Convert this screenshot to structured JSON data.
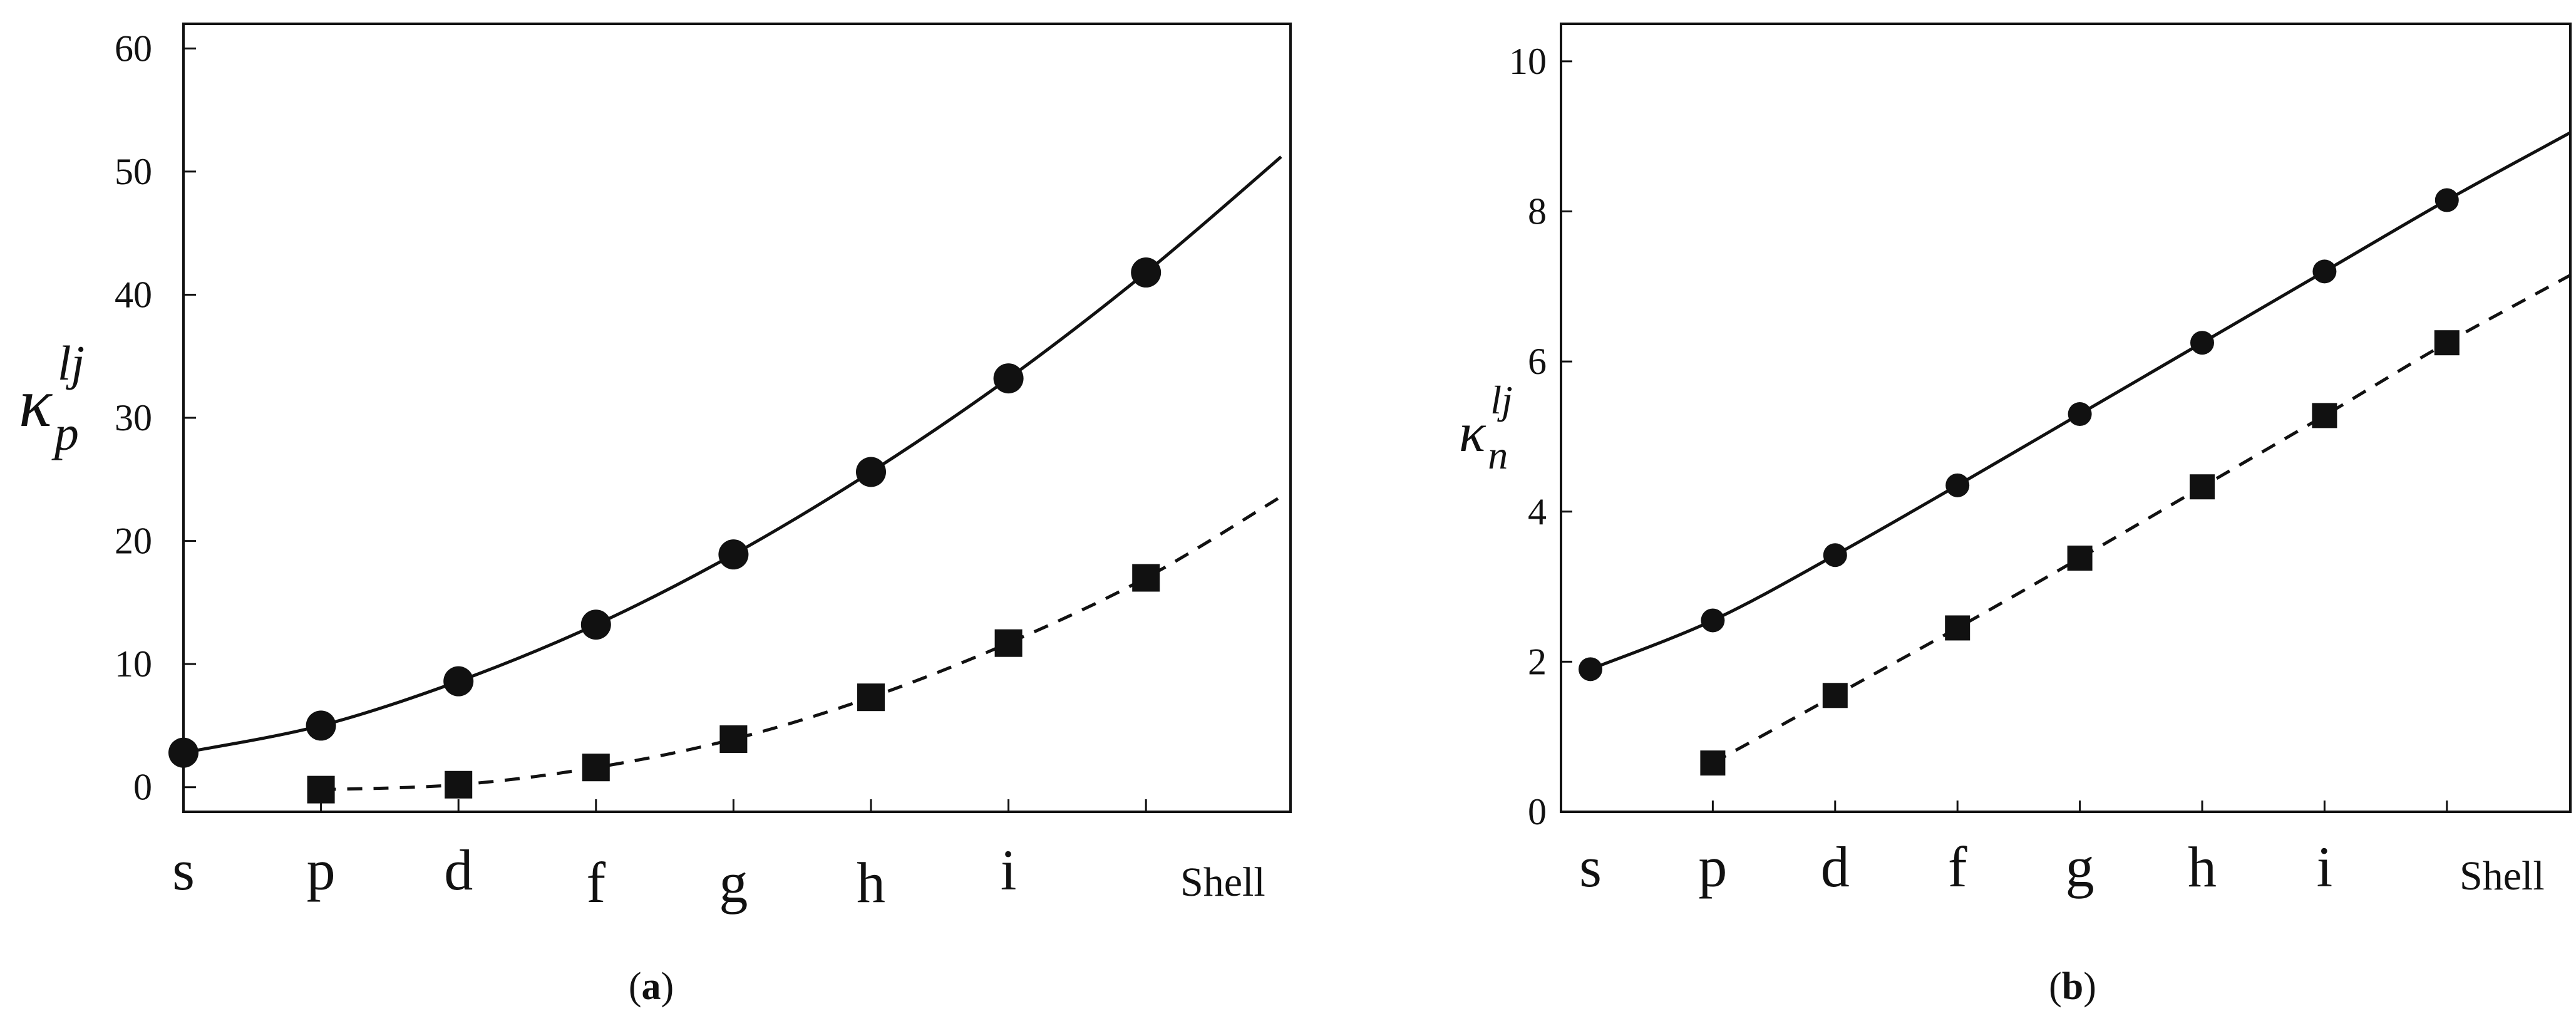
{
  "chart_data": [
    {
      "type": "line",
      "panel": "a",
      "caption_letter": "a",
      "ylabel": "κ",
      "ylabel_sub": "p",
      "ylabel_sup": "lj",
      "xlabel": "Shell",
      "categories": [
        "s",
        "p",
        "d",
        "f",
        "g",
        "h",
        "i",
        ""
      ],
      "y_ticks": [
        0,
        10,
        20,
        30,
        40,
        50,
        60
      ],
      "ylim": [
        -2,
        62
      ],
      "xlim": [
        0,
        8
      ],
      "grid": false,
      "series": [
        {
          "name": "circles",
          "marker": "circle",
          "line": "solid",
          "values": [
            2.8,
            5.0,
            8.6,
            13.2,
            18.9,
            25.6,
            33.2,
            41.8
          ],
          "line_end": 51.2
        },
        {
          "name": "squares",
          "marker": "square",
          "line": "dashed",
          "values": [
            null,
            -0.2,
            0.2,
            1.6,
            3.9,
            7.3,
            11.7,
            17.0
          ],
          "line_end": 23.6
        }
      ]
    },
    {
      "type": "line",
      "panel": "b",
      "caption_letter": "b",
      "ylabel": "κ",
      "ylabel_sub": "n",
      "ylabel_sup": "lj",
      "xlabel": "Shell",
      "categories": [
        "s",
        "p",
        "d",
        "f",
        "g",
        "h",
        "i",
        ""
      ],
      "y_ticks": [
        0,
        2,
        4,
        6,
        8,
        10
      ],
      "ylim": [
        0,
        10.5
      ],
      "xlim": [
        0,
        8
      ],
      "grid": false,
      "series": [
        {
          "name": "circles",
          "marker": "circle",
          "line": "solid",
          "values": [
            1.9,
            2.55,
            3.42,
            4.35,
            5.3,
            6.25,
            7.2,
            8.15
          ],
          "line_end": 9.05
        },
        {
          "name": "squares",
          "marker": "square",
          "line": "dashed",
          "values": [
            null,
            0.65,
            1.55,
            2.45,
            3.38,
            4.33,
            5.28,
            6.25
          ],
          "line_end": 7.15
        }
      ]
    }
  ]
}
